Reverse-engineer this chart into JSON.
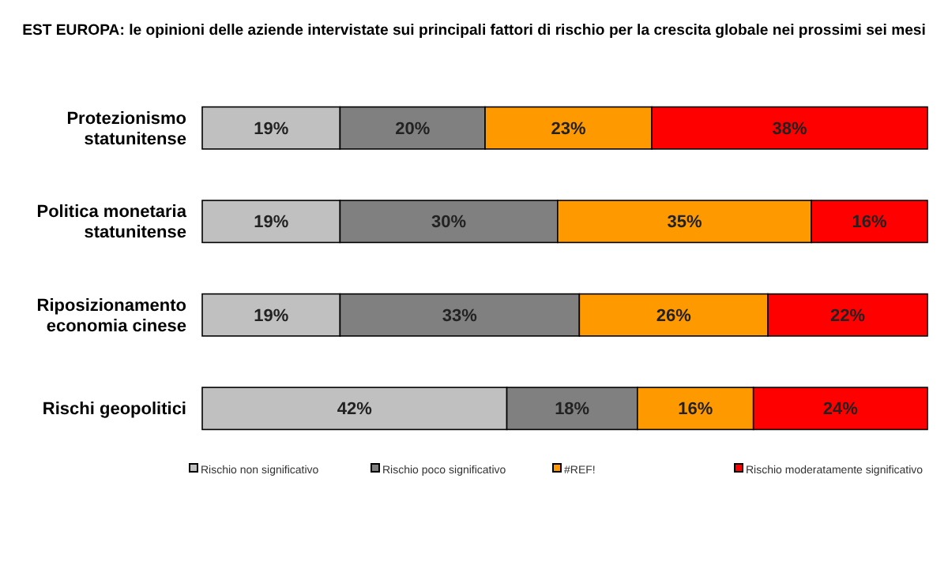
{
  "chart_data": {
    "type": "bar",
    "orientation": "horizontal",
    "stacked": true,
    "title": "EST EUROPA: le opinioni delle aziende intervistate sui principali fattori di rischio per la crescita globale nei prossimi sei mesi",
    "categories": [
      "Protezionismo\nstatunitense",
      "Politica monetaria\nstatunitense",
      "Riposizionamento\neconomia cinese",
      "Rischi geopolitici"
    ],
    "xlim": [
      0,
      100
    ],
    "tick_labels": "y",
    "legend": "bottom",
    "series": [
      {
        "name": "Rischio non significativo",
        "color": "#c0c0c0",
        "values": [
          19,
          19,
          19,
          42
        ],
        "value_labels": [
          "19%",
          "19%",
          "19%",
          "42%"
        ]
      },
      {
        "name": "Rischio poco significativo",
        "color": "#808080",
        "values": [
          20,
          30,
          33,
          18
        ],
        "value_labels": [
          "20%",
          "30%",
          "33%",
          "18%"
        ]
      },
      {
        "name": "#REF!",
        "color": "#ff9900",
        "values": [
          23,
          35,
          26,
          16
        ],
        "value_labels": [
          "23%",
          "35%",
          "26%",
          "16%"
        ]
      },
      {
        "name": "Rischio moderatamente significativo",
        "color": "#ff0000",
        "values": [
          38,
          16,
          22,
          24
        ],
        "value_labels": [
          "38%",
          "16%",
          "22%",
          "24%"
        ]
      }
    ]
  }
}
